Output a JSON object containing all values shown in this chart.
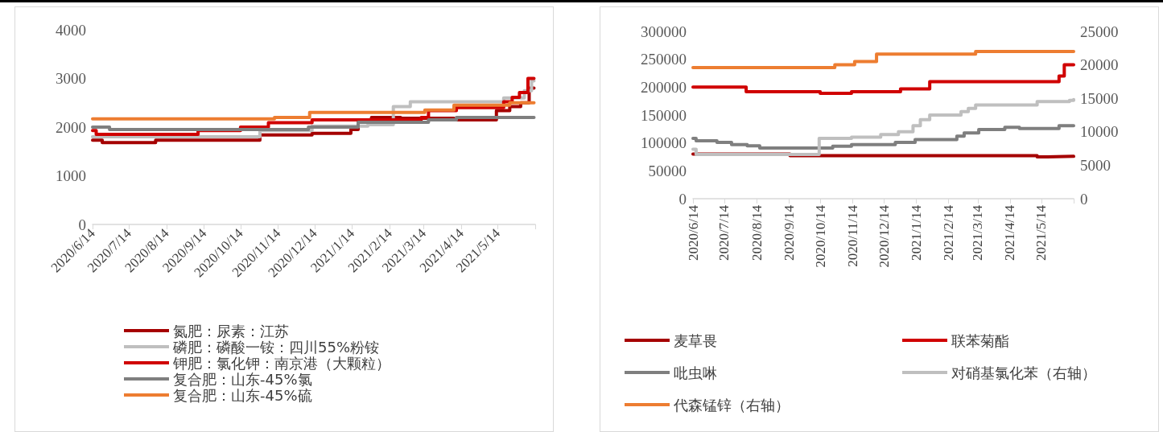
{
  "chart_data": [
    {
      "type": "step",
      "legend": "bottom",
      "xlim": [
        "2020-06-14",
        "2021-06-14"
      ],
      "ylim": [
        0,
        4000
      ],
      "yticks": [
        0,
        1000,
        2000,
        3000,
        4000
      ],
      "xticks": [
        {
          "value": "2020-06-14",
          "label": "2020/6/14"
        },
        {
          "value": "2020-07-14",
          "label": "2020/7/14"
        },
        {
          "value": "2020-08-14",
          "label": "2020/8/14"
        },
        {
          "value": "2020-09-14",
          "label": "2020/9/14"
        },
        {
          "value": "2020-10-14",
          "label": "2020/10/14"
        },
        {
          "value": "2020-11-14",
          "label": "2020/11/14"
        },
        {
          "value": "2020-12-14",
          "label": "2020/12/14"
        },
        {
          "value": "2021-01-14",
          "label": "2021/1/14"
        },
        {
          "value": "2021-02-14",
          "label": "2021/2/14"
        },
        {
          "value": "2021-03-14",
          "label": "2021/3/14"
        },
        {
          "value": "2021-04-14",
          "label": "2021/4/14"
        },
        {
          "value": "2021-05-14",
          "label": "2021/5/14"
        },
        {
          "value": "2021-06-14",
          "label": null
        }
      ],
      "series": [
        {
          "name": "氮肥：尿素：江苏",
          "color": "#a50000",
          "x": [
            "2020-06-14",
            "2020-06-22",
            "2020-08-05",
            "2020-10-30",
            "2020-12-12",
            "2021-01-13",
            "2021-01-19",
            "2021-01-30",
            "2021-02-23",
            "2021-04-08",
            "2021-05-13",
            "2021-05-24",
            "2021-06-02",
            "2021-06-09",
            "2021-06-13"
          ],
          "values": [
            1730,
            1680,
            1730,
            1840,
            1870,
            1950,
            2100,
            2200,
            2180,
            2150,
            2340,
            2420,
            2500,
            2800,
            2800
          ]
        },
        {
          "name": "磷肥：磷酸一铵：四川55%粉铵",
          "color": "#bfbfbf",
          "x": [
            "2020-06-14",
            "2020-10-30",
            "2020-12-12",
            "2021-01-27",
            "2021-02-17",
            "2021-03-03",
            "2021-05-19",
            "2021-06-05",
            "2021-06-11",
            "2021-06-13"
          ],
          "values": [
            1800,
            1930,
            2020,
            2050,
            2420,
            2520,
            2600,
            2750,
            2950,
            2950
          ]
        },
        {
          "name": "钾肥：氯化钾：南京港（大颗粒）",
          "color": "#d00000",
          "x": [
            "2020-06-14",
            "2020-06-17",
            "2020-09-09",
            "2020-10-14",
            "2020-11-06",
            "2020-12-12",
            "2021-03-12",
            "2021-03-18",
            "2021-04-10",
            "2021-05-19",
            "2021-05-26",
            "2021-06-01",
            "2021-06-08",
            "2021-06-13"
          ],
          "values": [
            1930,
            1850,
            1930,
            2000,
            2090,
            2150,
            2200,
            2340,
            2400,
            2520,
            2610,
            2710,
            3000,
            3000
          ]
        },
        {
          "name": "复合肥：山东-45%氯",
          "color": "#7f7f7f",
          "x": [
            "2020-06-14",
            "2020-06-28",
            "2020-12-09",
            "2021-01-19",
            "2021-03-18",
            "2021-04-10",
            "2021-06-13"
          ],
          "values": [
            2000,
            1950,
            2000,
            2100,
            2150,
            2200,
            2200
          ]
        },
        {
          "name": "复合肥：山东-45%硫",
          "color": "#ed7d31",
          "x": [
            "2020-06-14",
            "2020-11-11",
            "2020-12-10",
            "2021-03-15",
            "2021-04-08",
            "2021-05-24",
            "2021-06-13"
          ],
          "values": [
            2170,
            2200,
            2300,
            2350,
            2450,
            2500,
            2500
          ]
        }
      ]
    },
    {
      "type": "step",
      "legend": "bottom",
      "xlim": [
        "2020-06-14",
        "2021-06-14"
      ],
      "ylim": [
        0,
        300000
      ],
      "yticks": [
        0,
        50000,
        100000,
        150000,
        200000,
        250000,
        300000
      ],
      "y2lim": [
        0,
        25000
      ],
      "y2ticks": [
        0,
        5000,
        10000,
        15000,
        20000,
        25000
      ],
      "xticks": [
        {
          "value": "2020-06-14",
          "label": "2020/6/14"
        },
        {
          "value": "2020-07-14",
          "label": "2020/7/14"
        },
        {
          "value": "2020-08-14",
          "label": "2020/8/14"
        },
        {
          "value": "2020-09-14",
          "label": "2020/9/14"
        },
        {
          "value": "2020-10-14",
          "label": "2020/10/14"
        },
        {
          "value": "2020-11-14",
          "label": "2020/11/14"
        },
        {
          "value": "2020-12-14",
          "label": "2020/12/14"
        },
        {
          "value": "2021-01-14",
          "label": "2021/1/14"
        },
        {
          "value": "2021-02-14",
          "label": "2021/2/14"
        },
        {
          "value": "2021-03-14",
          "label": "2021/3/14"
        },
        {
          "value": "2021-04-14",
          "label": "2021/4/14"
        },
        {
          "value": "2021-05-14",
          "label": "2021/5/14"
        },
        {
          "value": "2021-06-14",
          "label": null
        }
      ],
      "series": [
        {
          "name": "麦草畏",
          "color": "#a50000",
          "x": [
            "2020-06-14",
            "2020-09-15",
            "2021-05-10",
            "2021-05-20",
            "2021-06-14"
          ],
          "values": [
            80000,
            77000,
            75000,
            76000,
            76000
          ]
        },
        {
          "name": "联苯菊酯",
          "color": "#d00000",
          "x": [
            "2020-06-14",
            "2020-08-04",
            "2020-10-14",
            "2020-11-13",
            "2020-12-30",
            "2021-01-27",
            "2021-05-31",
            "2021-06-05",
            "2021-06-14"
          ],
          "values": [
            200000,
            192000,
            189000,
            192000,
            197000,
            210000,
            220000,
            240000,
            240000
          ]
        },
        {
          "name": "吡虫啉",
          "color": "#7f7f7f",
          "x": [
            "2020-06-14",
            "2020-06-17",
            "2020-07-07",
            "2020-07-21",
            "2020-08-05",
            "2020-08-17",
            "2020-10-26",
            "2020-11-13",
            "2020-12-25",
            "2021-01-13",
            "2021-02-22",
            "2021-03-01",
            "2021-03-15",
            "2021-04-09",
            "2021-04-23",
            "2021-05-31",
            "2021-06-14"
          ],
          "values": [
            108000,
            104000,
            101000,
            97000,
            95000,
            91000,
            94000,
            97000,
            101000,
            106000,
            112000,
            118000,
            124000,
            128000,
            126000,
            131000,
            131000
          ]
        },
        {
          "name": "对硝基氯化苯（右轴）",
          "color": "#bfbfbf",
          "axis": "y2",
          "x": [
            "2020-06-14",
            "2020-06-17",
            "2020-10-13",
            "2020-11-13",
            "2020-12-11",
            "2020-12-28",
            "2021-01-11",
            "2021-01-18",
            "2021-01-27",
            "2021-02-26",
            "2021-03-05",
            "2021-03-12",
            "2021-05-10",
            "2021-06-10",
            "2021-06-14"
          ],
          "values": [
            7400,
            6600,
            9000,
            9200,
            9600,
            10000,
            10900,
            11800,
            12500,
            13000,
            13500,
            14000,
            14500,
            14700,
            14800
          ]
        },
        {
          "name": "代森锰锌（右轴）",
          "color": "#ed7d31",
          "axis": "y2",
          "x": [
            "2020-06-14",
            "2020-10-28",
            "2020-11-16",
            "2020-12-07",
            "2021-03-12",
            "2021-06-14"
          ],
          "values": [
            19600,
            20000,
            20500,
            21600,
            22000,
            22000
          ]
        }
      ]
    }
  ]
}
